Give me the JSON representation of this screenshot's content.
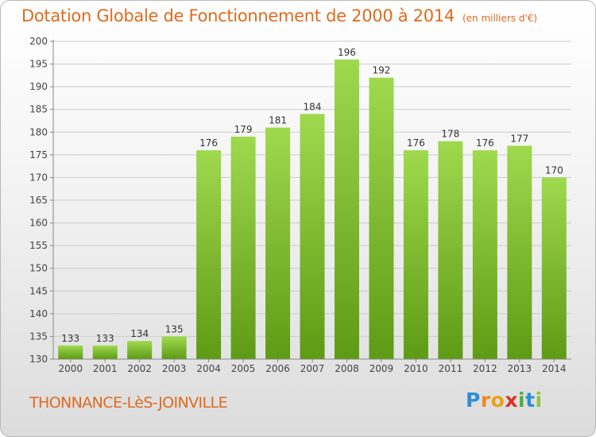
{
  "header": {
    "title": "Dotation Globale de Fonctionnement de 2000 à 2014",
    "subtitle": "(en milliers d'€)"
  },
  "footer": {
    "commune": "THONNANCE-LèS-JOINVILLE",
    "logo_text": "Proxiti"
  },
  "colors": {
    "bar_top": "#9fd94e",
    "bar_bottom": "#5e9b14",
    "title": "#e06a1e",
    "grid": "#cccccc"
  },
  "chart_data": {
    "type": "bar",
    "title": "Dotation Globale de Fonctionnement de 2000 à 2014",
    "subtitle": "(en milliers d'€)",
    "xlabel": "",
    "ylabel": "",
    "categories": [
      "2000",
      "2001",
      "2002",
      "2003",
      "2004",
      "2005",
      "2006",
      "2007",
      "2008",
      "2009",
      "2010",
      "2011",
      "2012",
      "2013",
      "2014"
    ],
    "values": [
      133,
      133,
      134,
      135,
      176,
      179,
      181,
      184,
      196,
      192,
      176,
      178,
      176,
      177,
      170
    ],
    "ylim": [
      130,
      200
    ],
    "yticks": [
      130,
      135,
      140,
      145,
      150,
      155,
      160,
      165,
      170,
      175,
      180,
      185,
      190,
      195,
      200
    ],
    "grid": true,
    "legend": "none"
  }
}
